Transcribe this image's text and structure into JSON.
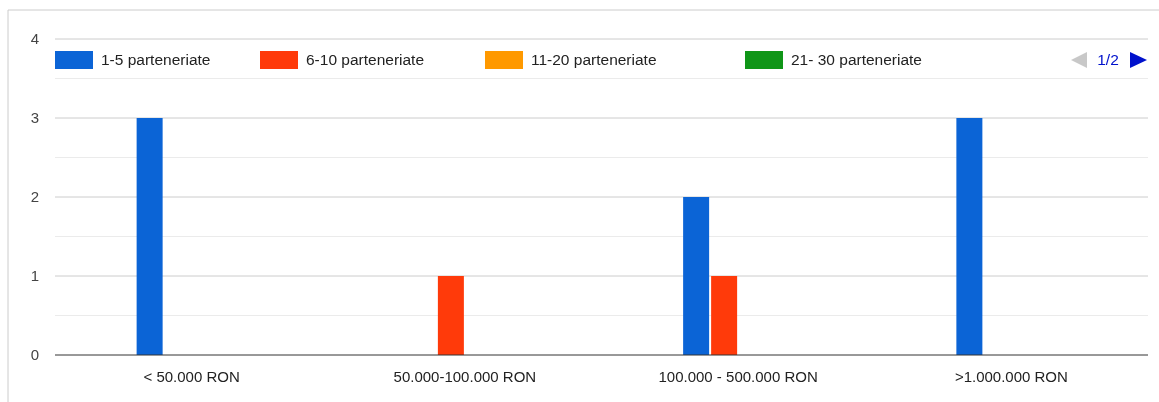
{
  "chart_data": {
    "type": "bar",
    "categories": [
      "< 50.000 RON",
      "50.000-100.000 RON",
      "100.000 - 500.000 RON",
      ">1.000.000 RON"
    ],
    "series": [
      {
        "name": "1-5 parteneriate",
        "color": "#0b64d6",
        "values": [
          3,
          0,
          2,
          3
        ]
      },
      {
        "name": "6-10 parteneriate",
        "color": "#ff3a0a",
        "values": [
          0,
          1,
          1,
          0
        ]
      },
      {
        "name": "11-20 parteneriate",
        "color": "#ff9900",
        "values": [
          0,
          0,
          0,
          0
        ]
      },
      {
        "name": "21- 30 parteneriate",
        "color": "#109618",
        "values": [
          0,
          0,
          0,
          0
        ]
      }
    ],
    "ylim": [
      0,
      4
    ],
    "yticks": [
      0,
      1,
      2,
      3,
      4
    ],
    "grid": "y",
    "legend": "top",
    "annotations": [
      "1/2"
    ]
  }
}
